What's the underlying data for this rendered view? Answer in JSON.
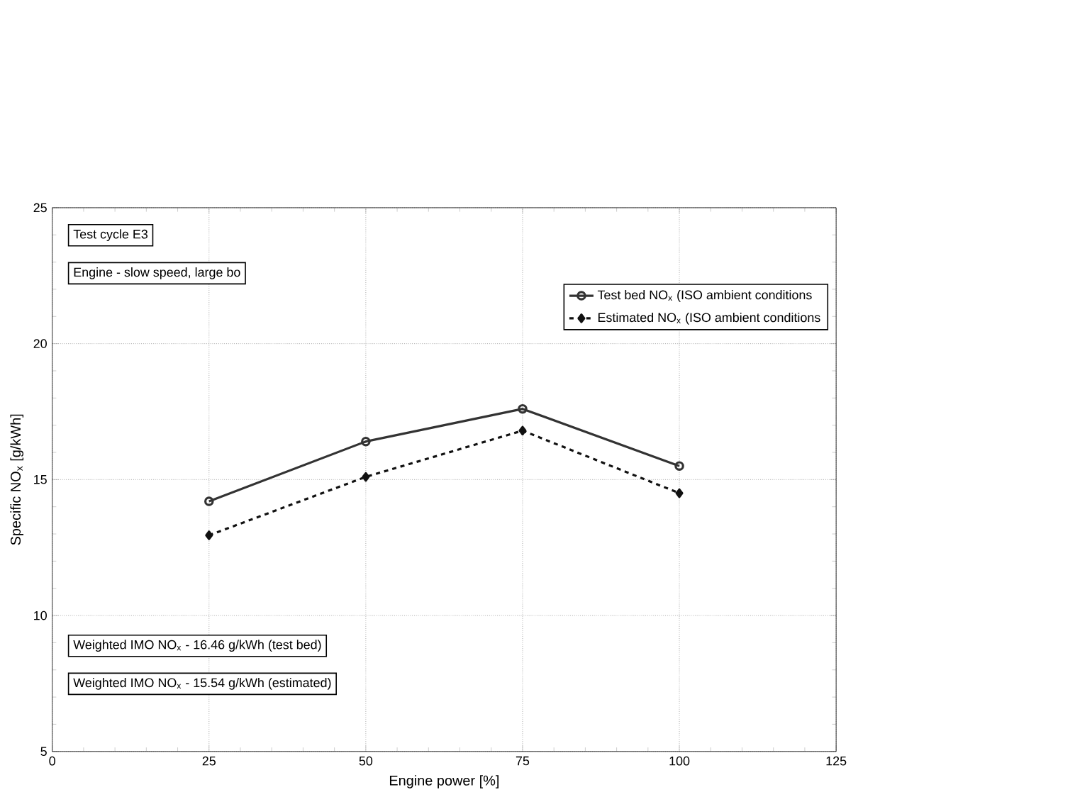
{
  "chart_data": {
    "type": "line",
    "xlabel": "Engine power [%]",
    "ylabel": "Specific NO$_{x}$ [g/kWh]",
    "x": [
      25,
      50,
      75,
      100
    ],
    "series": [
      {
        "name": "Test bed NO$_{x}$ (ISO ambient conditions",
        "color": "#333333",
        "values": [
          14.2,
          16.4,
          17.6,
          15.5
        ],
        "marker": "circle",
        "line_style": "solid"
      },
      {
        "name": "Estimated NO$_{x}$ (ISO ambient conditions",
        "color": "#111111",
        "values": [
          12.95,
          15.1,
          16.8,
          14.5
        ],
        "marker": "diamond",
        "line_style": "dashed"
      }
    ],
    "xlim": [
      0,
      125
    ],
    "ylim": [
      5,
      25
    ],
    "xticks": [
      0,
      25,
      50,
      75,
      100,
      125
    ],
    "yticks": [
      5,
      10,
      15,
      20,
      25
    ],
    "grid": true,
    "legend": "top right",
    "annotations": [
      "Test cycle E3",
      "Engine - slow speed, large bo",
      "Weighted IMO NO$_{x}$ - 16.46 g/kWh (test bed)",
      "Weighted IMO NO$_{x}$ - 15.54 g/kWh (estimated)"
    ]
  }
}
